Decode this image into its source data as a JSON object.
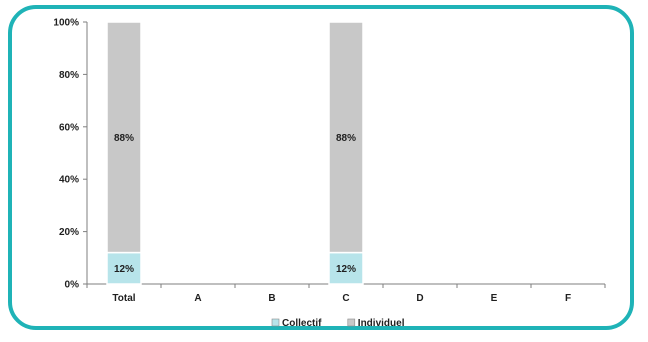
{
  "chart_data": {
    "type": "bar",
    "stacked": true,
    "percent_stacked": true,
    "categories": [
      "Total",
      "A",
      "B",
      "C",
      "D",
      "E",
      "F"
    ],
    "series": [
      {
        "name": "Collectif",
        "values": [
          12,
          null,
          null,
          12,
          null,
          null,
          null
        ],
        "labels": [
          "12%",
          "",
          "",
          "12%",
          "",
          "",
          ""
        ]
      },
      {
        "name": "Individuel",
        "values": [
          88,
          null,
          null,
          88,
          null,
          null,
          null
        ],
        "labels": [
          "88%",
          "",
          "",
          "88%",
          "",
          "",
          ""
        ]
      }
    ],
    "y_ticks": [
      "0%",
      "20%",
      "40%",
      "60%",
      "80%",
      "100%"
    ],
    "ylim": [
      0,
      100
    ],
    "grid": false,
    "legend_position": "bottom",
    "colors": {
      "Collectif": "#b7e4ea",
      "Individuel": "#c8c8c8",
      "frame": "#1fb3b7",
      "axis": "#7f7f7f"
    }
  }
}
